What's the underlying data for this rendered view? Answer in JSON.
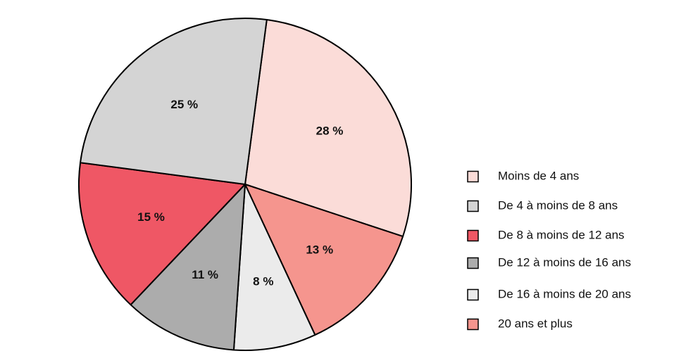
{
  "chart_data": {
    "type": "pie",
    "title": "",
    "start_angle_deg": 82.5,
    "direction": "clockwise",
    "slices": [
      {
        "label": "Moins de 4 ans",
        "value": 28,
        "value_label": "28 %",
        "color": "#fbdcd8"
      },
      {
        "label": "20 ans et plus",
        "value": 13,
        "value_label": "13 %",
        "color": "#f5958e"
      },
      {
        "label": "De 16 à moins de 20 ans",
        "value": 8,
        "value_label": "8 %",
        "color": "#ebebeb"
      },
      {
        "label": "De 12 à moins de 16 ans",
        "value": 11,
        "value_label": "11 %",
        "color": "#acacac"
      },
      {
        "label": "De 8 à moins de 12 ans",
        "value": 15,
        "value_label": "15 %",
        "color": "#ef5765"
      },
      {
        "label": "De 4 à moins de 8 ans",
        "value": 25,
        "value_label": "25 %",
        "color": "#d4d4d4"
      }
    ],
    "legend": {
      "position": "right",
      "entries": [
        {
          "label": "Moins de 4 ans",
          "color": "#fbdcd8"
        },
        {
          "label": "De 4 à moins de 8 ans",
          "color": "#d4d4d4"
        },
        {
          "label": "De 8 à moins de 12 ans",
          "color": "#ef5765"
        },
        {
          "label": "De 12 à moins de 16 ans",
          "color": "#acacac"
        },
        {
          "label": "De 16 à moins de 20 ans",
          "color": "#ebebeb"
        },
        {
          "label": "20 ans et plus",
          "color": "#f5958e"
        }
      ]
    }
  }
}
